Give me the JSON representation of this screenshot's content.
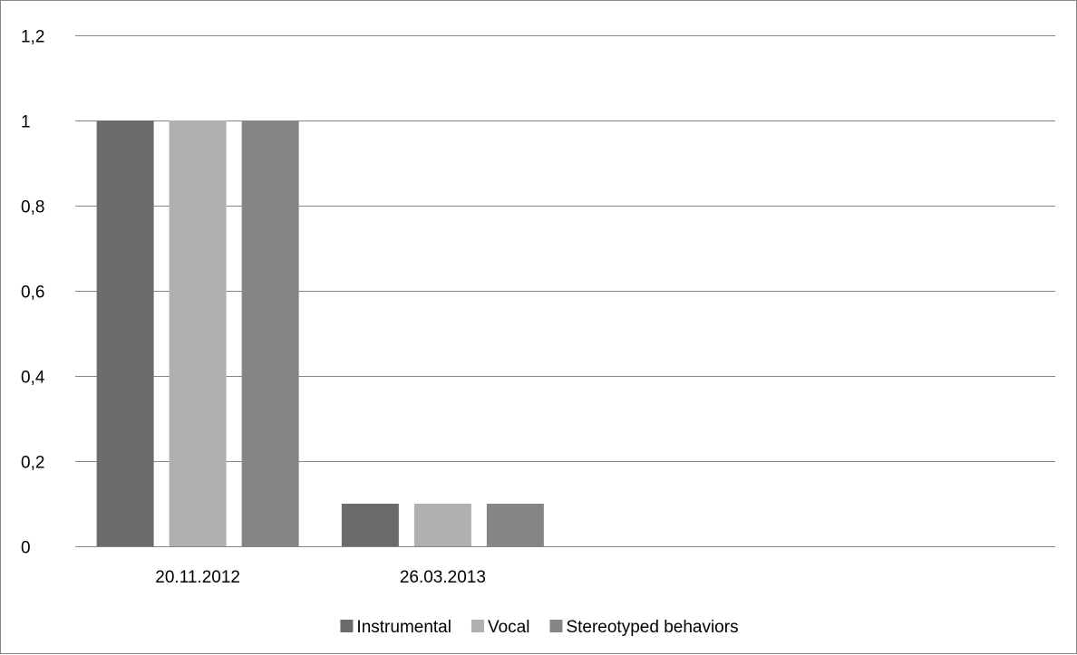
{
  "chart_data": {
    "type": "bar",
    "categories": [
      "20.11.2012",
      "26.03.2013",
      "",
      ""
    ],
    "series": [
      {
        "name": "Instrumental",
        "values": [
          1,
          0.1,
          null,
          null
        ],
        "color": "#6b6b6b"
      },
      {
        "name": "Vocal",
        "values": [
          1,
          0.1,
          null,
          null
        ],
        "color": "#b0b0b0"
      },
      {
        "name": "Stereotyped behaviors",
        "values": [
          1,
          0.1,
          null,
          null
        ],
        "color": "#858585"
      }
    ],
    "title": "",
    "xlabel": "",
    "ylabel": "",
    "ylim": [
      0,
      1.2
    ],
    "yticks": [
      0,
      0.2,
      0.4,
      0.6,
      0.8,
      1,
      1.2
    ],
    "ytick_labels": [
      "0",
      "0,2",
      "0,4",
      "0,6",
      "0,8",
      "1",
      "1,2"
    ],
    "grid": "horizontal",
    "legend_position": "bottom",
    "gridline_color": "#868686"
  }
}
